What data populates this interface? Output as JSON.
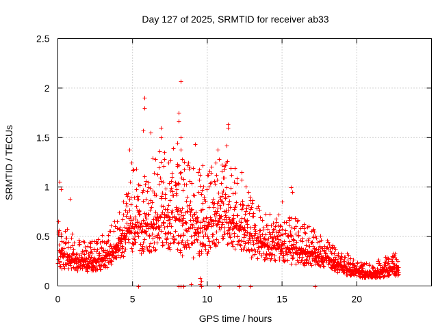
{
  "chart_data": {
    "type": "scatter",
    "title": "Day 127 of 2025, SRMTID for receiver ab33",
    "xlabel": "GPS time / hours",
    "ylabel": "SRMTID / TECUs",
    "xlim": [
      0,
      25
    ],
    "ylim": [
      0,
      2.5
    ],
    "xticks": [
      0,
      5,
      10,
      15,
      20
    ],
    "xtick_labels": [
      "0",
      "5",
      "10",
      "15",
      "20"
    ],
    "yticks": [
      0,
      0.5,
      1,
      1.5,
      2,
      2.5
    ],
    "ytick_labels": [
      "0",
      "0.5",
      "1",
      "1.5",
      "2",
      "2.5"
    ],
    "grid": true,
    "marker": "plus",
    "color": "#ff0000",
    "series": [
      {
        "name": "SRMTID",
        "profile": [
          {
            "t": 0.0,
            "median": 0.35,
            "spread": 0.22
          },
          {
            "t": 1.0,
            "median": 0.28,
            "spread": 0.15
          },
          {
            "t": 2.0,
            "median": 0.25,
            "spread": 0.13
          },
          {
            "t": 3.0,
            "median": 0.28,
            "spread": 0.15
          },
          {
            "t": 4.0,
            "median": 0.42,
            "spread": 0.18
          },
          {
            "t": 5.0,
            "median": 0.62,
            "spread": 0.35
          },
          {
            "t": 6.0,
            "median": 0.62,
            "spread": 0.4
          },
          {
            "t": 7.0,
            "median": 0.72,
            "spread": 0.42
          },
          {
            "t": 8.0,
            "median": 0.68,
            "spread": 0.45
          },
          {
            "t": 9.0,
            "median": 0.6,
            "spread": 0.4
          },
          {
            "t": 10.0,
            "median": 0.6,
            "spread": 0.35
          },
          {
            "t": 11.0,
            "median": 0.72,
            "spread": 0.38
          },
          {
            "t": 12.0,
            "median": 0.62,
            "spread": 0.35
          },
          {
            "t": 13.0,
            "median": 0.48,
            "spread": 0.25
          },
          {
            "t": 14.0,
            "median": 0.42,
            "spread": 0.2
          },
          {
            "t": 15.0,
            "median": 0.4,
            "spread": 0.2
          },
          {
            "t": 16.0,
            "median": 0.38,
            "spread": 0.22
          },
          {
            "t": 17.0,
            "median": 0.33,
            "spread": 0.15
          },
          {
            "t": 18.0,
            "median": 0.28,
            "spread": 0.12
          },
          {
            "t": 19.0,
            "median": 0.2,
            "spread": 0.1
          },
          {
            "t": 20.0,
            "median": 0.15,
            "spread": 0.07
          },
          {
            "t": 21.0,
            "median": 0.12,
            "spread": 0.06
          },
          {
            "t": 22.0,
            "median": 0.18,
            "spread": 0.1
          },
          {
            "t": 22.8,
            "median": 0.18,
            "spread": 0.1
          }
        ],
        "t_range": [
          0.0,
          22.8
        ],
        "outliers": [
          [
            0.1,
            1.05
          ],
          [
            0.2,
            0.98
          ],
          [
            0.8,
            0.88
          ],
          [
            4.8,
            1.38
          ],
          [
            4.9,
            1.25
          ],
          [
            5.8,
            1.9
          ],
          [
            5.8,
            1.8
          ],
          [
            5.7,
            1.57
          ],
          [
            6.2,
            1.55
          ],
          [
            6.9,
            1.6
          ],
          [
            6.9,
            1.5
          ],
          [
            7.1,
            1.28
          ],
          [
            7.4,
            1.25
          ],
          [
            8.2,
            2.07
          ],
          [
            8.1,
            1.75
          ],
          [
            8.1,
            1.67
          ],
          [
            8.2,
            1.5
          ],
          [
            8.0,
            1.45
          ],
          [
            8.2,
            1.38
          ],
          [
            8.3,
            1.28
          ],
          [
            8.1,
            1.22
          ],
          [
            9.2,
            1.43
          ],
          [
            9.5,
            1.12
          ],
          [
            9.7,
            1.22
          ],
          [
            10.7,
            1.38
          ],
          [
            10.6,
            1.12
          ],
          [
            11.4,
            1.63
          ],
          [
            11.4,
            1.6
          ],
          [
            11.3,
            1.42
          ],
          [
            11.2,
            1.22
          ],
          [
            11.8,
            1.05
          ],
          [
            12.3,
            1.15
          ],
          [
            15.6,
            1.0
          ],
          [
            15.7,
            0.95
          ],
          [
            15.0,
            0.85
          ],
          [
            17.1,
            0.58
          ],
          [
            9.5,
            0.08
          ],
          [
            9.6,
            0.05
          ],
          [
            9.5,
            0.02
          ],
          [
            8.9,
            0.02
          ]
        ],
        "zero_values_at": [
          5.4,
          8.1,
          8.2,
          8.4,
          9.6,
          10.8,
          12.1,
          12.9,
          17.2
        ]
      }
    ]
  }
}
